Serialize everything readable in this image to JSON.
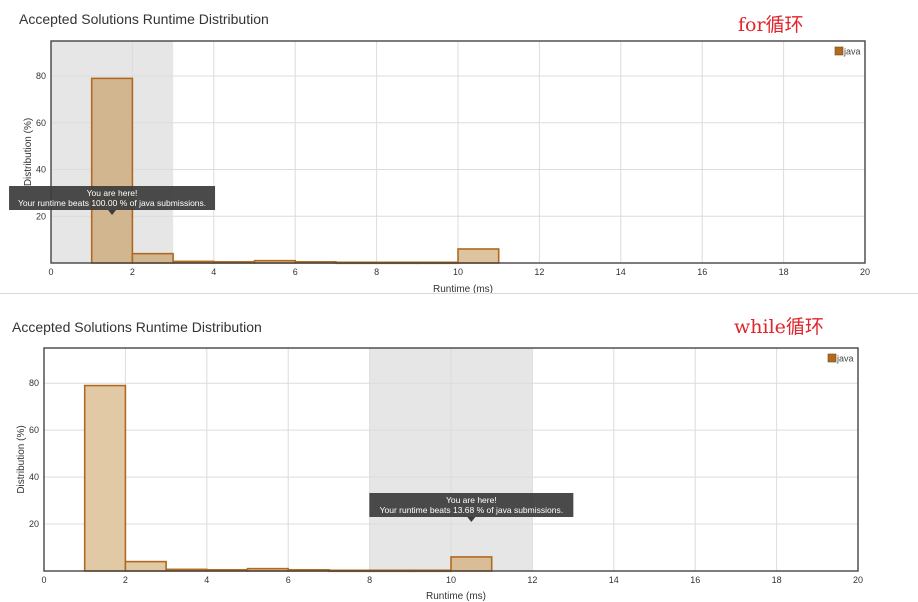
{
  "chart_data": [
    {
      "type": "bar",
      "title": "Accepted Solutions Runtime Distribution",
      "annotation": "for循环",
      "xlabel": "Runtime (ms)",
      "ylabel": "Distribution (%)",
      "xlim": [
        0,
        20
      ],
      "ylim": [
        0,
        95
      ],
      "xticks": [
        0,
        2,
        4,
        6,
        8,
        10,
        12,
        14,
        16,
        18,
        20
      ],
      "yticks": [
        20,
        40,
        60,
        80
      ],
      "grid": true,
      "legend": "top-right",
      "series": [
        {
          "name": "java",
          "bins": [
            [
              1,
              2
            ],
            [
              2,
              3
            ],
            [
              3,
              4
            ],
            [
              4,
              5
            ],
            [
              5,
              6
            ],
            [
              6,
              7
            ],
            [
              7,
              8
            ],
            [
              8,
              9
            ],
            [
              9,
              10
            ],
            [
              10,
              11
            ]
          ],
          "values": [
            79,
            4,
            0.7,
            0.5,
            1,
            0.5,
            0.3,
            0.3,
            0.3,
            6
          ]
        }
      ],
      "highlight_range": [
        0,
        3
      ],
      "tooltip": {
        "line1": "You are here!",
        "line2": "Your runtime beats 100.00 % of java submissions.",
        "x": 1.5
      },
      "colors": {
        "fill": "#ddc3a0",
        "stroke": "#b06a1f",
        "highlight_fill": "#d2b690",
        "highlight_band": "#e6e6e6",
        "legend": "#b06a1f"
      }
    },
    {
      "type": "bar",
      "title": "Accepted Solutions Runtime Distribution",
      "annotation": "while循环",
      "xlabel": "Runtime (ms)",
      "ylabel": "Distribution (%)",
      "xlim": [
        0,
        20
      ],
      "ylim": [
        0,
        95
      ],
      "xticks": [
        0,
        2,
        4,
        6,
        8,
        10,
        12,
        14,
        16,
        18,
        20
      ],
      "yticks": [
        20,
        40,
        60,
        80
      ],
      "grid": true,
      "legend": "top-right",
      "series": [
        {
          "name": "java",
          "bins": [
            [
              1,
              2
            ],
            [
              2,
              3
            ],
            [
              3,
              4
            ],
            [
              4,
              5
            ],
            [
              5,
              6
            ],
            [
              6,
              7
            ],
            [
              7,
              8
            ],
            [
              8,
              9
            ],
            [
              9,
              10
            ],
            [
              10,
              11
            ]
          ],
          "values": [
            79,
            4,
            0.7,
            0.5,
            1,
            0.5,
            0.3,
            0.3,
            0.3,
            6
          ]
        }
      ],
      "highlight_range": [
        8,
        12
      ],
      "tooltip": {
        "line1": "You are here!",
        "line2": "Your runtime beats 13.68 % of java submissions.",
        "x": 10.5
      },
      "colors": {
        "fill": "#e2c9a6",
        "stroke": "#b06a1f",
        "highlight_fill": "#d9bd96",
        "highlight_band": "#e6e6e6",
        "legend": "#b06a1f"
      }
    }
  ]
}
